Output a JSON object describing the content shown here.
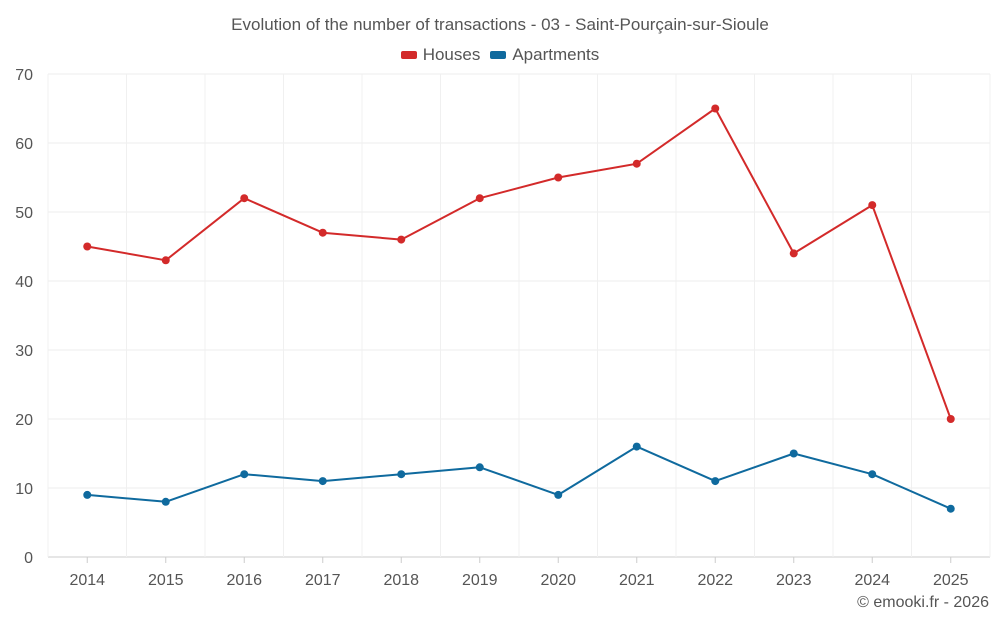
{
  "chart_data": {
    "type": "line",
    "title": "Evolution of the number of transactions - 03 - Saint-Pourçain-sur-Sioule",
    "categories": [
      "2014",
      "2015",
      "2016",
      "2017",
      "2018",
      "2019",
      "2020",
      "2021",
      "2022",
      "2023",
      "2024",
      "2025"
    ],
    "series": [
      {
        "name": "Houses",
        "color": "#d32a2a",
        "values": [
          45,
          43,
          52,
          47,
          46,
          52,
          55,
          57,
          65,
          44,
          51,
          20
        ]
      },
      {
        "name": "Apartments",
        "color": "#0f6a9e",
        "values": [
          9,
          8,
          12,
          11,
          12,
          13,
          9,
          16,
          11,
          15,
          12,
          7
        ]
      }
    ],
    "xlabel": "",
    "ylabel": "",
    "ylim": [
      0,
      70
    ],
    "yticks": [
      0,
      10,
      20,
      30,
      40,
      50,
      60,
      70
    ],
    "grid": true,
    "legend_position": "top"
  },
  "credit": "© emooki.fr - 2026"
}
